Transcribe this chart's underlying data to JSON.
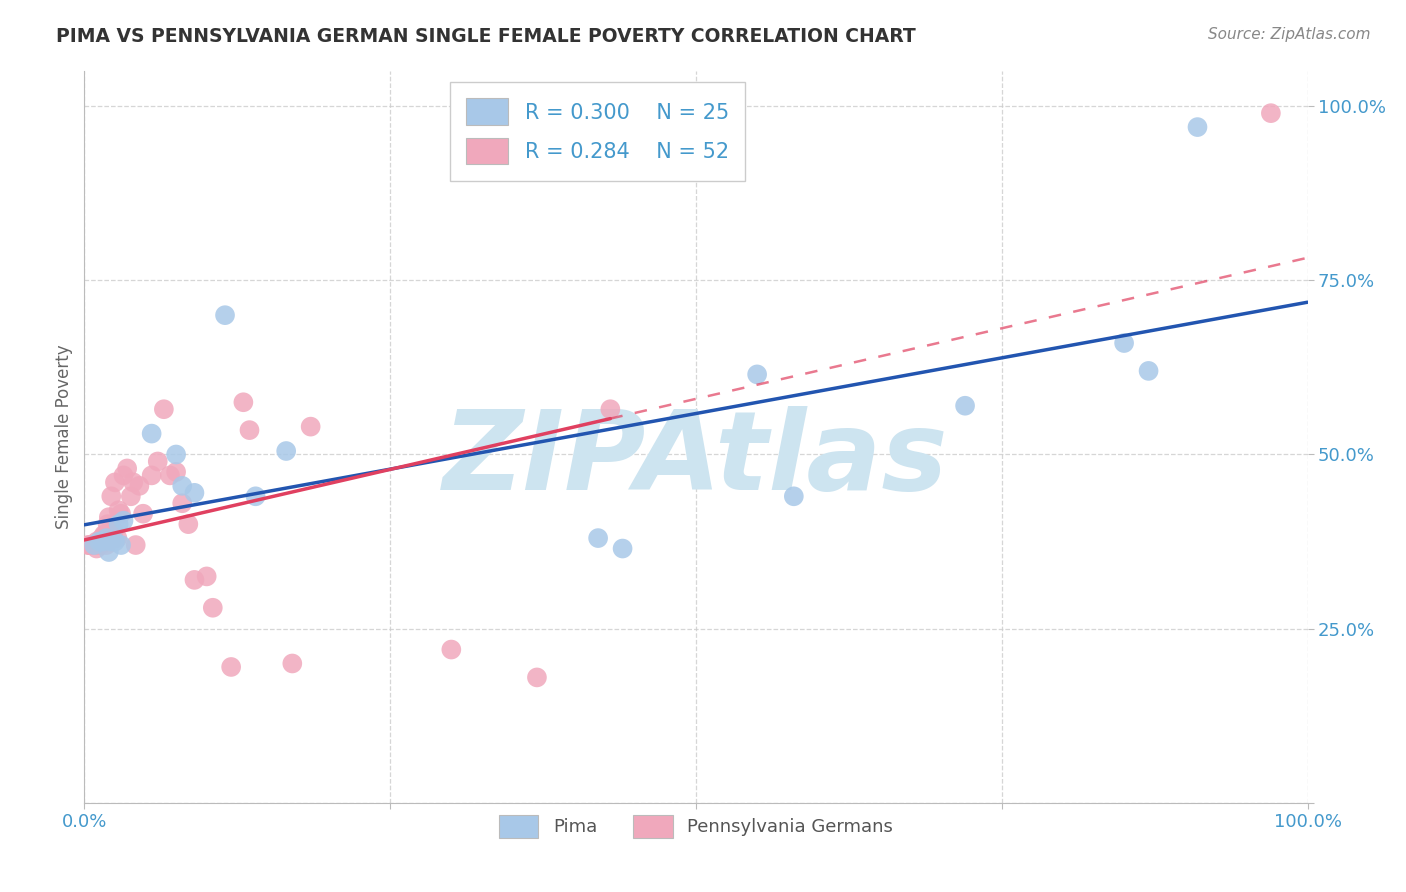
{
  "title": "PIMA VS PENNSYLVANIA GERMAN SINGLE FEMALE POVERTY CORRELATION CHART",
  "source_text": "Source: ZipAtlas.com",
  "ylabel": "Single Female Poverty",
  "xlim": [
    0.0,
    1.0
  ],
  "ylim": [
    0.0,
    1.05
  ],
  "x_ticks": [
    0.0,
    0.25,
    0.5,
    0.75,
    1.0
  ],
  "y_ticks": [
    0.0,
    0.25,
    0.5,
    0.75,
    1.0
  ],
  "x_tick_labels": [
    "0.0%",
    "",
    "",
    "",
    "100.0%"
  ],
  "y_tick_labels": [
    "",
    "25.0%",
    "50.0%",
    "75.0%",
    "100.0%"
  ],
  "legend_r1": "R = 0.300",
  "legend_n1": "N = 25",
  "legend_r2": "R = 0.284",
  "legend_n2": "N = 52",
  "pima_color": "#a8c8e8",
  "penn_color": "#f0a8bc",
  "pima_line_color": "#2255b0",
  "penn_line_color": "#e04060",
  "grid_color": "#cccccc",
  "watermark_color": "#cde4f0",
  "title_color": "#333333",
  "axis_label_color": "#4499cc",
  "pima_x": [
    0.008,
    0.012,
    0.015,
    0.018,
    0.02,
    0.022,
    0.025,
    0.028,
    0.03,
    0.032,
    0.055,
    0.075,
    0.08,
    0.09,
    0.115,
    0.14,
    0.165,
    0.42,
    0.44,
    0.55,
    0.58,
    0.72,
    0.85,
    0.87,
    0.91
  ],
  "pima_y": [
    0.37,
    0.375,
    0.375,
    0.38,
    0.36,
    0.375,
    0.375,
    0.4,
    0.37,
    0.405,
    0.53,
    0.5,
    0.455,
    0.445,
    0.7,
    0.44,
    0.505,
    0.38,
    0.365,
    0.615,
    0.44,
    0.57,
    0.66,
    0.62,
    0.97
  ],
  "penn_x": [
    0.003,
    0.004,
    0.005,
    0.006,
    0.007,
    0.008,
    0.009,
    0.01,
    0.01,
    0.011,
    0.012,
    0.013,
    0.014,
    0.015,
    0.016,
    0.017,
    0.018,
    0.019,
    0.02,
    0.021,
    0.022,
    0.024,
    0.025,
    0.027,
    0.028,
    0.03,
    0.032,
    0.035,
    0.038,
    0.04,
    0.042,
    0.045,
    0.048,
    0.055,
    0.06,
    0.065,
    0.07,
    0.075,
    0.08,
    0.085,
    0.09,
    0.1,
    0.105,
    0.12,
    0.13,
    0.135,
    0.17,
    0.185,
    0.3,
    0.37,
    0.43,
    0.97
  ],
  "penn_y": [
    0.37,
    0.37,
    0.37,
    0.37,
    0.37,
    0.37,
    0.37,
    0.375,
    0.365,
    0.37,
    0.375,
    0.37,
    0.38,
    0.375,
    0.385,
    0.385,
    0.37,
    0.4,
    0.41,
    0.38,
    0.44,
    0.39,
    0.46,
    0.38,
    0.42,
    0.415,
    0.47,
    0.48,
    0.44,
    0.46,
    0.37,
    0.455,
    0.415,
    0.47,
    0.49,
    0.565,
    0.47,
    0.475,
    0.43,
    0.4,
    0.32,
    0.325,
    0.28,
    0.195,
    0.575,
    0.535,
    0.2,
    0.54,
    0.22,
    0.18,
    0.565,
    0.99
  ]
}
